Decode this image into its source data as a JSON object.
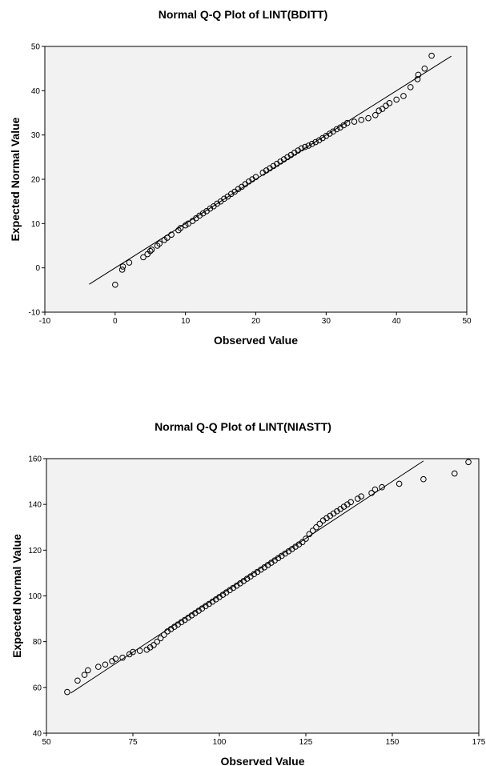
{
  "chart_data": [
    {
      "type": "scatter",
      "title": "Normal Q-Q Plot of LINT(BDITT)",
      "xlabel": "Observed Value",
      "ylabel": "Expected Normal Value",
      "xlim": [
        -10,
        50
      ],
      "ylim": [
        -10,
        50
      ],
      "xticks": [
        "-10",
        "0",
        "10",
        "20",
        "30",
        "40",
        "50"
      ],
      "yticks": [
        "-10",
        "0",
        "10",
        "20",
        "30",
        "40",
        "50"
      ],
      "grid": false,
      "plot_background": "#f2f2f2",
      "reference_line": [
        [
          -3.7,
          -3.7
        ],
        [
          47.8,
          47.8
        ]
      ],
      "points": [
        [
          0,
          -3.8
        ],
        [
          1,
          -0.4
        ],
        [
          1.1,
          0.3
        ],
        [
          2,
          1.2
        ],
        [
          4,
          2.4
        ],
        [
          4.6,
          3.1
        ],
        [
          5,
          3.8
        ],
        [
          5.2,
          4.1
        ],
        [
          6,
          5.0
        ],
        [
          6.3,
          5.5
        ],
        [
          7,
          6.3
        ],
        [
          7.4,
          6.8
        ],
        [
          8,
          7.5
        ],
        [
          9,
          8.5
        ],
        [
          9.3,
          9.0
        ],
        [
          10,
          9.6
        ],
        [
          10.4,
          10.0
        ],
        [
          11,
          10.6
        ],
        [
          11.5,
          11.2
        ],
        [
          12,
          11.8
        ],
        [
          12.5,
          12.3
        ],
        [
          13,
          12.8
        ],
        [
          13.5,
          13.4
        ],
        [
          14,
          13.9
        ],
        [
          14.5,
          14.5
        ],
        [
          15,
          15.0
        ],
        [
          15.5,
          15.6
        ],
        [
          16,
          16.1
        ],
        [
          16.5,
          16.7
        ],
        [
          17,
          17.2
        ],
        [
          17.5,
          17.8
        ],
        [
          18,
          18.3
        ],
        [
          18.5,
          18.9
        ],
        [
          19,
          19.5
        ],
        [
          19.5,
          20.0
        ],
        [
          20,
          20.5
        ],
        [
          21,
          21.5
        ],
        [
          21.5,
          22.0
        ],
        [
          22,
          22.5
        ],
        [
          22.5,
          23.0
        ],
        [
          23,
          23.5
        ],
        [
          23.5,
          24.0
        ],
        [
          24,
          24.5
        ],
        [
          24.5,
          25.0
        ],
        [
          25,
          25.5
        ],
        [
          25.5,
          26.0
        ],
        [
          26,
          26.5
        ],
        [
          26.5,
          27.0
        ],
        [
          27,
          27.3
        ],
        [
          27.5,
          27.6
        ],
        [
          28,
          28.0
        ],
        [
          28.5,
          28.4
        ],
        [
          29,
          28.8
        ],
        [
          29.5,
          29.3
        ],
        [
          30,
          29.8
        ],
        [
          30.5,
          30.3
        ],
        [
          31,
          30.8
        ],
        [
          31.5,
          31.3
        ],
        [
          32,
          31.7
        ],
        [
          32.5,
          32.2
        ],
        [
          33,
          32.7
        ],
        [
          34,
          33.0
        ],
        [
          35,
          33.4
        ],
        [
          36,
          33.8
        ],
        [
          37,
          34.5
        ],
        [
          37.5,
          35.5
        ],
        [
          38,
          35.9
        ],
        [
          38.5,
          36.6
        ],
        [
          39,
          37.2
        ],
        [
          40,
          38.0
        ],
        [
          41,
          38.8
        ],
        [
          42,
          40.8
        ],
        [
          43,
          42.6
        ],
        [
          43.1,
          43.6
        ],
        [
          44,
          45.0
        ],
        [
          45,
          47.9
        ]
      ]
    },
    {
      "type": "scatter",
      "title": "Normal Q-Q Plot of LINT(NIASTT)",
      "xlabel": "Observed Value",
      "ylabel": "Expected Normal Value",
      "xlim": [
        50,
        175
      ],
      "ylim": [
        40,
        160
      ],
      "xticks": [
        "50",
        "75",
        "100",
        "125",
        "150",
        "175"
      ],
      "yticks": [
        "40",
        "60",
        "80",
        "100",
        "120",
        "140",
        "160"
      ],
      "grid": false,
      "plot_background": "#f2f2f2",
      "reference_line": [
        [
          57,
          57.5
        ],
        [
          159,
          159
        ]
      ],
      "points": [
        [
          56,
          58
        ],
        [
          59,
          63
        ],
        [
          61,
          65.5
        ],
        [
          62,
          67.5
        ],
        [
          65,
          69
        ],
        [
          67,
          70
        ],
        [
          69,
          71.5
        ],
        [
          70,
          72.5
        ],
        [
          72,
          73
        ],
        [
          74,
          74.5
        ],
        [
          75,
          75.5
        ],
        [
          77,
          76
        ],
        [
          79,
          76.5
        ],
        [
          80,
          77.5
        ],
        [
          81,
          78.5
        ],
        [
          82,
          80
        ],
        [
          83,
          81.5
        ],
        [
          84,
          83
        ],
        [
          85,
          84.5
        ],
        [
          86,
          85.5
        ],
        [
          87,
          86.5
        ],
        [
          88,
          87.5
        ],
        [
          89,
          88.5
        ],
        [
          90,
          89.5
        ],
        [
          91,
          90.5
        ],
        [
          92,
          91.5
        ],
        [
          93,
          92.5
        ],
        [
          94,
          93.5
        ],
        [
          95,
          94.5
        ],
        [
          96,
          95.5
        ],
        [
          97,
          96.5
        ],
        [
          98,
          97.5
        ],
        [
          99,
          98.5
        ],
        [
          100,
          99.5
        ],
        [
          101,
          100.5
        ],
        [
          102,
          101.5
        ],
        [
          103,
          102.5
        ],
        [
          104,
          103.5
        ],
        [
          105,
          104.5
        ],
        [
          106,
          105.5
        ],
        [
          107,
          106.5
        ],
        [
          108,
          107.5
        ],
        [
          109,
          108.5
        ],
        [
          110,
          109.5
        ],
        [
          111,
          110.5
        ],
        [
          112,
          111.5
        ],
        [
          113,
          112.5
        ],
        [
          114,
          113.5
        ],
        [
          115,
          114.5
        ],
        [
          116,
          115.5
        ],
        [
          117,
          116.5
        ],
        [
          118,
          117.5
        ],
        [
          119,
          118.5
        ],
        [
          120,
          119.5
        ],
        [
          121,
          120.5
        ],
        [
          122,
          121.5
        ],
        [
          123,
          122.5
        ],
        [
          124,
          123.5
        ],
        [
          125,
          125
        ],
        [
          126,
          127
        ],
        [
          127,
          128.5
        ],
        [
          128,
          130
        ],
        [
          129,
          131.5
        ],
        [
          130,
          133
        ],
        [
          131,
          134
        ],
        [
          132,
          135
        ],
        [
          133,
          136
        ],
        [
          134,
          137
        ],
        [
          135,
          138
        ],
        [
          136,
          139
        ],
        [
          137,
          140
        ],
        [
          138,
          141
        ],
        [
          140,
          142.5
        ],
        [
          141,
          143.5
        ],
        [
          144,
          145
        ],
        [
          145,
          146.5
        ],
        [
          147,
          147.5
        ],
        [
          152,
          149
        ],
        [
          159,
          151
        ],
        [
          168,
          153.5
        ],
        [
          172,
          158.5
        ]
      ]
    }
  ]
}
